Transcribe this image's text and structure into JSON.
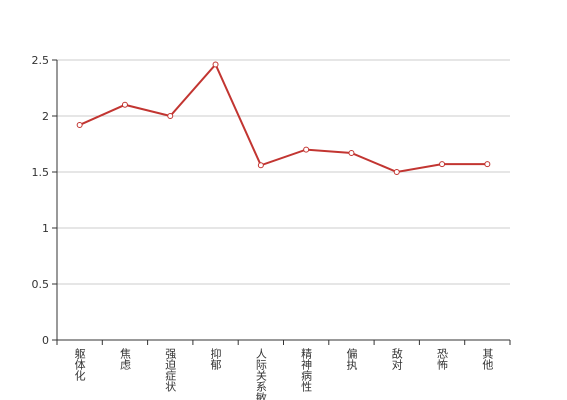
{
  "chart_data": {
    "type": "line",
    "categories": [
      "躯体化",
      "焦虑",
      "强迫症状",
      "抑郁",
      "人际关系敏感",
      "精神病性",
      "偏执",
      "敌对",
      "恐怖",
      "其他"
    ],
    "series": [
      {
        "color": "#c23531",
        "values": [
          1.92,
          2.1,
          2.0,
          2.46,
          1.56,
          1.7,
          1.67,
          1.5,
          1.57,
          1.57
        ]
      }
    ],
    "ylim": [
      0,
      2.5
    ],
    "yticks": [
      0,
      0.5,
      1,
      1.5,
      2,
      2.5
    ],
    "grid": true
  }
}
